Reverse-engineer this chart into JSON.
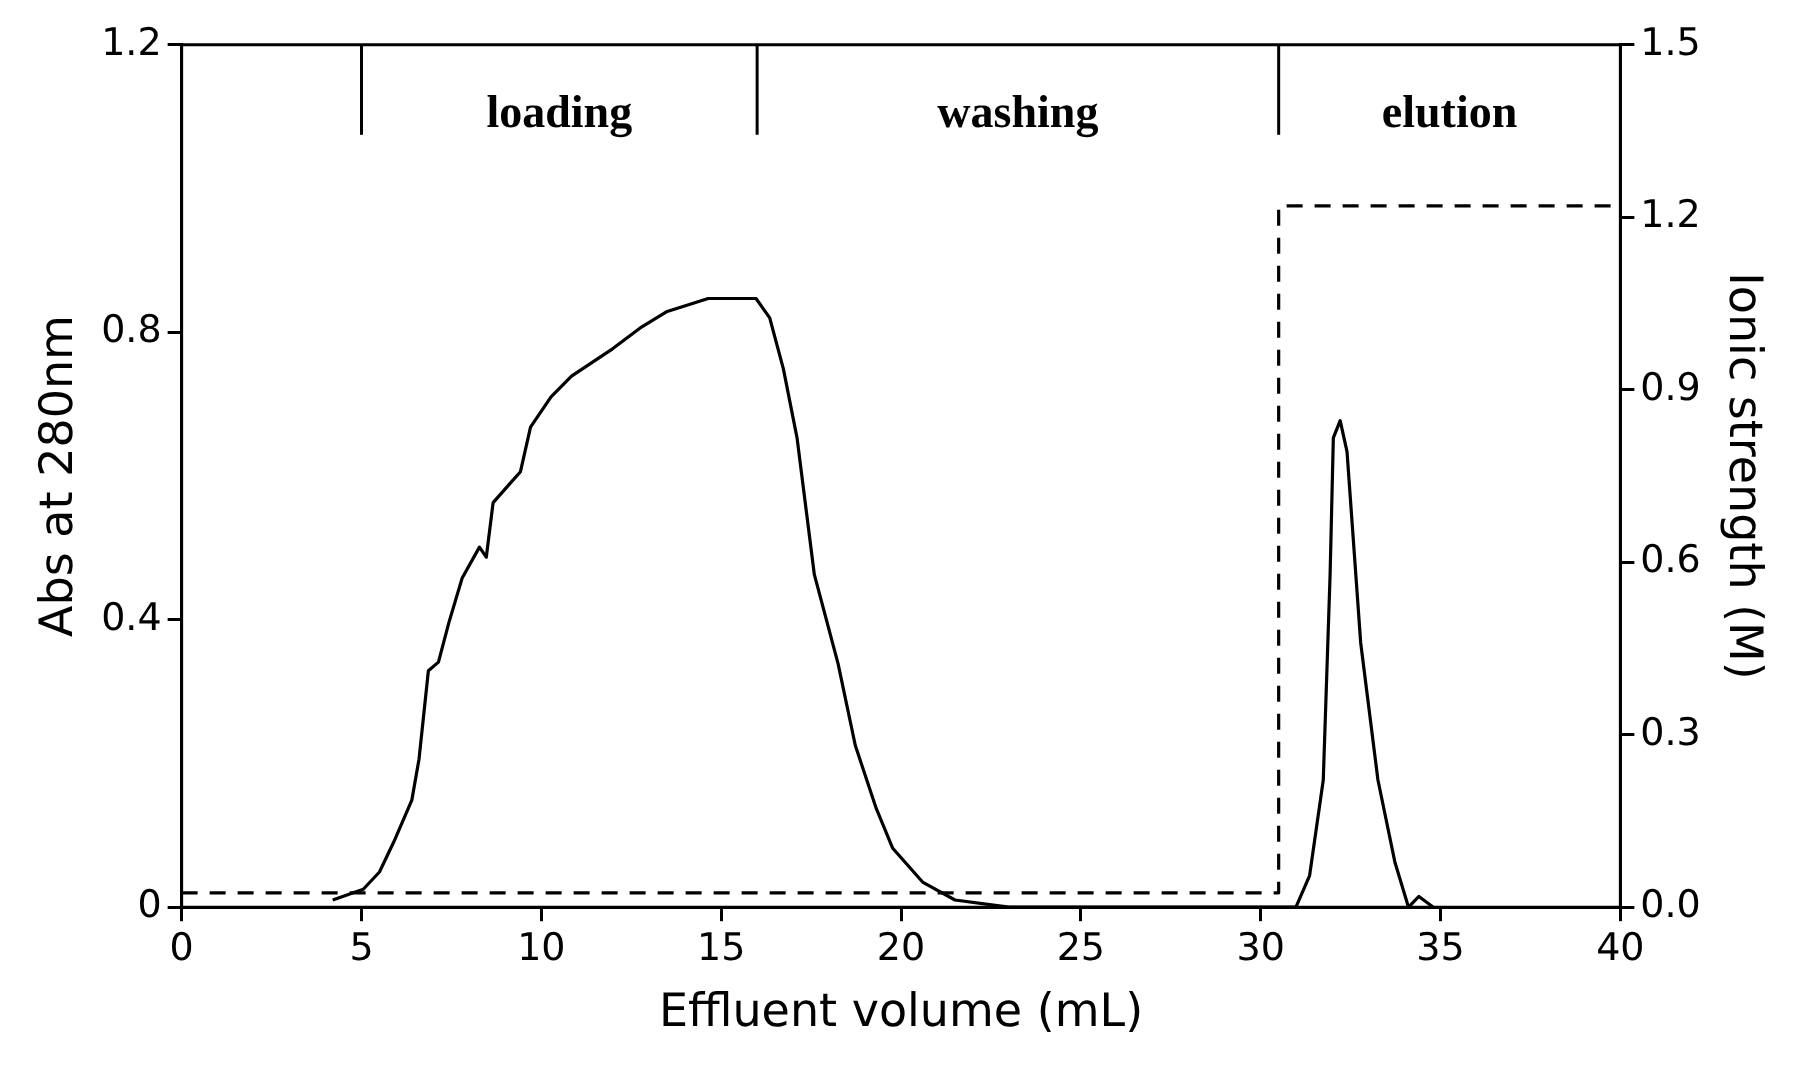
{
  "chart_data": {
    "type": "line",
    "xlabel": "Effluent volume (mL)",
    "ylabel": "Abs at 280nm",
    "y2label": "Ionic strength (M)",
    "xlim": [
      0,
      40
    ],
    "xticks": [
      0,
      5,
      10,
      15,
      20,
      25,
      30,
      35,
      40
    ],
    "ylim": [
      0,
      1.2
    ],
    "yticks": [
      0,
      0.4,
      0.8,
      1.2
    ],
    "y2lim": [
      0,
      1.5
    ],
    "y2ticks": [
      {
        "value": 0,
        "label": "0.0"
      },
      0.3,
      0.6,
      0.9,
      1.2,
      1.5
    ],
    "grid": false,
    "legend": false,
    "marker": "none",
    "ref_lines": [
      {
        "axis": "x",
        "value": 5
      },
      {
        "axis": "x",
        "value": 16
      },
      {
        "axis": "x",
        "value": 30.5
      }
    ],
    "annotations": [
      "loading",
      "washing",
      "elution"
    ],
    "series": [
      {
        "color": "#000000",
        "line_style": "solid",
        "x": [
          4.2,
          5.05,
          5.5,
          5.9,
          6.4,
          6.6,
          6.86,
          7.14,
          7.43,
          7.8,
          8.28,
          8.47,
          8.66,
          9.42,
          9.7,
          10.27,
          10.84,
          11.98,
          12.75,
          13.5,
          14.64,
          15.97,
          16.35,
          16.73,
          17.11,
          17.59,
          18.25,
          18.73,
          19.3,
          19.77,
          20.6,
          21.5,
          23,
          30.98,
          31.36,
          31.74,
          31.93,
          32.02,
          32.21,
          32.4,
          32.78,
          33.26,
          33.73,
          34.11,
          34.4,
          34.8
        ],
        "values": [
          0.01,
          0.025,
          0.049,
          0.091,
          0.149,
          0.206,
          0.329,
          0.341,
          0.396,
          0.458,
          0.501,
          0.487,
          0.563,
          0.606,
          0.668,
          0.71,
          0.739,
          0.777,
          0.806,
          0.829,
          0.847,
          0.847,
          0.82,
          0.749,
          0.653,
          0.463,
          0.339,
          0.225,
          0.139,
          0.082,
          0.035,
          0.01,
          0,
          0,
          0.044,
          0.177,
          0.463,
          0.653,
          0.677,
          0.634,
          0.368,
          0.177,
          0.063,
          0,
          0.015,
          0
        ]
      },
      {
        "color": "#000000",
        "line_style": "dashed",
        "axis": "y2",
        "x": [
          0,
          30.5,
          30.5,
          40
        ],
        "values": [
          0.025,
          0.025,
          1.22,
          1.22
        ]
      }
    ]
  }
}
